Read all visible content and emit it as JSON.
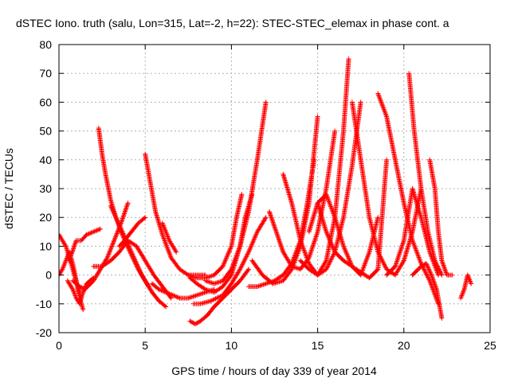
{
  "chart_data": {
    "type": "scatter",
    "title": "dSTEC Iono. truth (salu, Lon=315, Lat=-2, h=22): STEC-STEC_elemax in phase cont. a",
    "xlabel": "GPS time / hours of day 339 of year 2014",
    "ylabel": "dSTEC  / TECUs",
    "xlim": [
      0,
      25
    ],
    "ylim": [
      -20,
      80
    ],
    "xticks": [
      0,
      5,
      10,
      15,
      20,
      25
    ],
    "yticks": [
      -20,
      -10,
      0,
      10,
      20,
      30,
      40,
      50,
      60,
      70,
      80
    ],
    "grid": true,
    "marker": "+",
    "color": "#ff0000",
    "series": [
      {
        "x": [
          0,
          0.2,
          0.4,
          0.6,
          0.8,
          1.0,
          1.2
        ],
        "y": [
          14,
          12,
          10,
          6,
          2,
          -2,
          -6
        ]
      },
      {
        "x": [
          0,
          0.2,
          0.4,
          0.6,
          0.8,
          1.0,
          1.2,
          1.4
        ],
        "y": [
          0,
          2,
          5,
          8,
          4,
          -2,
          -8,
          -12
        ]
      },
      {
        "x": [
          0.5,
          0.8,
          1.0,
          1.2,
          1.4,
          1.6,
          1.8,
          2.0
        ],
        "y": [
          -2,
          -5,
          -8,
          -10,
          -6,
          -3,
          -2,
          -1
        ]
      },
      {
        "x": [
          0.6,
          1.0,
          1.3,
          1.6,
          2.0,
          2.4
        ],
        "y": [
          5,
          12,
          12,
          14,
          15,
          16
        ]
      },
      {
        "x": [
          0.8,
          1.2,
          1.5,
          2.0,
          2.4,
          2.8,
          3.2,
          3.6,
          4.0
        ],
        "y": [
          -2,
          -4,
          -5,
          -2,
          2,
          6,
          12,
          18,
          25
        ]
      },
      {
        "x": [
          2.3,
          2.5,
          2.7,
          3.0,
          3.3,
          3.6,
          3.9,
          4.2,
          4.5,
          4.8,
          5.2
        ],
        "y": [
          51,
          42,
          35,
          26,
          20,
          16,
          12,
          8,
          4,
          0,
          -4
        ]
      },
      {
        "x": [
          2.0,
          2.5,
          3.0,
          3.5,
          4.0,
          4.5,
          5.0,
          5.5,
          6.0,
          6.5
        ],
        "y": [
          3,
          3,
          5,
          8,
          12,
          10,
          5,
          0,
          -4,
          -8
        ]
      },
      {
        "x": [
          3.0,
          3.3,
          3.6,
          3.9,
          4.2,
          4.6,
          5.0,
          5.4,
          5.8,
          6.2
        ],
        "y": [
          24,
          20,
          15,
          11,
          7,
          2,
          -2,
          -6,
          -9,
          -11
        ]
      },
      {
        "x": [
          3.5,
          3.8,
          4.2,
          4.6,
          5.0
        ],
        "y": [
          10,
          12,
          15,
          18,
          20
        ]
      },
      {
        "x": [
          5.0,
          5.3,
          5.6,
          6.0,
          6.5,
          7.0,
          7.5,
          8.0,
          8.5
        ],
        "y": [
          42,
          32,
          22,
          14,
          6,
          2,
          0,
          0,
          0
        ]
      },
      {
        "x": [
          5.4,
          5.8,
          6.2,
          6.6,
          7.0,
          7.5,
          8.0,
          8.5,
          9.0
        ],
        "y": [
          -3,
          -5,
          -6,
          -7,
          -8,
          -8,
          -7,
          -6,
          -5
        ]
      },
      {
        "x": [
          6.0,
          6.2,
          6.4,
          6.6,
          6.8
        ],
        "y": [
          18,
          15,
          12,
          10,
          8
        ]
      },
      {
        "x": [
          7.5,
          8.0,
          8.5,
          9.0,
          9.5,
          10.0,
          10.3,
          10.6
        ],
        "y": [
          0,
          -1,
          -1,
          0,
          3,
          10,
          20,
          28
        ]
      },
      {
        "x": [
          7.6,
          8.0,
          8.5,
          9.0,
          9.5,
          10.0,
          10.5,
          10.8,
          11.2
        ],
        "y": [
          -1,
          -3,
          -5,
          -6,
          -4,
          0,
          10,
          20,
          28
        ]
      },
      {
        "x": [
          8.5,
          9.0,
          9.5,
          10.0,
          10.5,
          11.0,
          11.5,
          12.0
        ],
        "y": [
          -2,
          -3,
          -2,
          2,
          10,
          22,
          40,
          60
        ]
      },
      {
        "x": [
          7.8,
          8.2,
          8.8,
          9.5,
          10.0,
          10.5,
          11.0,
          11.5,
          12.0
        ],
        "y": [
          -10,
          -10,
          -9,
          -7,
          -3,
          2,
          8,
          15,
          20
        ]
      },
      {
        "x": [
          7.6,
          7.9,
          8.2,
          8.6,
          9.0,
          9.5,
          10.0,
          10.5,
          11.0
        ],
        "y": [
          -16,
          -17,
          -16,
          -14,
          -11,
          -8,
          -5,
          -2,
          2
        ]
      },
      {
        "x": [
          11.0,
          11.5,
          12.0,
          12.5,
          13.0,
          13.5,
          14.0,
          14.4,
          14.8
        ],
        "y": [
          -4,
          -4,
          -3,
          -2,
          0,
          4,
          12,
          25,
          40
        ]
      },
      {
        "x": [
          11.2,
          11.8,
          12.4,
          13.0,
          13.5,
          14.0,
          14.5,
          15.0
        ],
        "y": [
          5,
          0,
          -3,
          -2,
          2,
          10,
          25,
          55
        ]
      },
      {
        "x": [
          12.2,
          12.6,
          13.0,
          13.5,
          14.0,
          14.5,
          15.0,
          15.5,
          16.0
        ],
        "y": [
          22,
          15,
          8,
          3,
          2,
          6,
          15,
          30,
          50
        ]
      },
      {
        "x": [
          13.0,
          13.5,
          14.0,
          14.5,
          15.0,
          15.5,
          16.0,
          16.5,
          16.8
        ],
        "y": [
          35,
          25,
          12,
          4,
          0,
          5,
          20,
          50,
          75
        ]
      },
      {
        "x": [
          14.0,
          14.5,
          15.0,
          15.5,
          16.0,
          16.5,
          17.0,
          17.5
        ],
        "y": [
          5,
          2,
          0,
          2,
          8,
          20,
          38,
          60
        ]
      },
      {
        "x": [
          14.5,
          15.0,
          15.5,
          16.0,
          16.5,
          17.0,
          17.5,
          18.0,
          18.5
        ],
        "y": [
          15,
          25,
          28,
          20,
          10,
          3,
          0,
          8,
          20
        ]
      },
      {
        "x": [
          15.0,
          15.5,
          16.0,
          16.5,
          17.0,
          17.5,
          18.0,
          18.5,
          19.0
        ],
        "y": [
          25,
          15,
          8,
          5,
          3,
          1,
          -1,
          2,
          40
        ]
      },
      {
        "x": [
          17.0,
          17.5,
          18.0,
          18.5,
          19.0,
          19.5,
          20.0,
          20.5,
          21.0
        ],
        "y": [
          60,
          40,
          20,
          8,
          2,
          0,
          5,
          15,
          30
        ]
      },
      {
        "x": [
          18.5,
          19.0,
          19.5,
          20.0,
          20.5,
          21.0,
          21.5,
          22.0
        ],
        "y": [
          63,
          55,
          40,
          25,
          12,
          4,
          -2,
          -10
        ]
      },
      {
        "x": [
          20.3,
          20.6,
          21.0,
          21.4,
          21.8,
          22.2
        ],
        "y": [
          70,
          50,
          30,
          15,
          5,
          0
        ]
      },
      {
        "x": [
          19.0,
          19.5,
          20.0,
          20.5,
          21.0,
          21.5,
          22.0
        ],
        "y": [
          0,
          3,
          12,
          30,
          20,
          8,
          0
        ]
      },
      {
        "x": [
          20.5,
          21.0,
          21.3,
          21.6,
          21.9,
          22.2
        ],
        "y": [
          0,
          3,
          4,
          0,
          -5,
          -15
        ]
      },
      {
        "x": [
          21.5,
          21.8,
          22.0,
          22.2,
          22.5,
          22.8
        ],
        "y": [
          40,
          30,
          15,
          5,
          0,
          0
        ]
      },
      {
        "x": [
          23.3,
          23.5,
          23.7,
          23.9
        ],
        "y": [
          -8,
          -5,
          0,
          -3
        ]
      }
    ]
  }
}
